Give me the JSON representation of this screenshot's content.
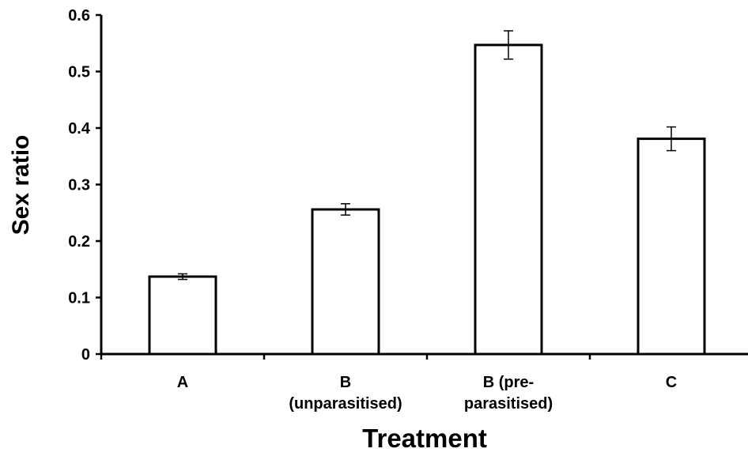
{
  "chart_data": {
    "type": "bar",
    "title": "",
    "xlabel": "Treatment",
    "ylabel": "Sex ratio",
    "ylim": [
      0,
      0.6
    ],
    "yticks": [
      "0",
      "0.1",
      "0.2",
      "0.3",
      "0.4",
      "0.5",
      "0.6"
    ],
    "ytick_values": [
      0,
      0.1,
      0.2,
      0.3,
      0.4,
      0.5,
      0.6
    ],
    "categories": [
      [
        "A"
      ],
      [
        "B",
        "(unparasitised)"
      ],
      [
        "B (pre-",
        "parasitised)"
      ],
      [
        "C"
      ]
    ],
    "values": [
      0.137,
      0.256,
      0.547,
      0.381
    ],
    "errors": [
      0.005,
      0.01,
      0.025,
      0.021
    ],
    "bar_fill": "#ffffff",
    "bar_stroke": "#000000",
    "grid": false,
    "legend": "none"
  }
}
